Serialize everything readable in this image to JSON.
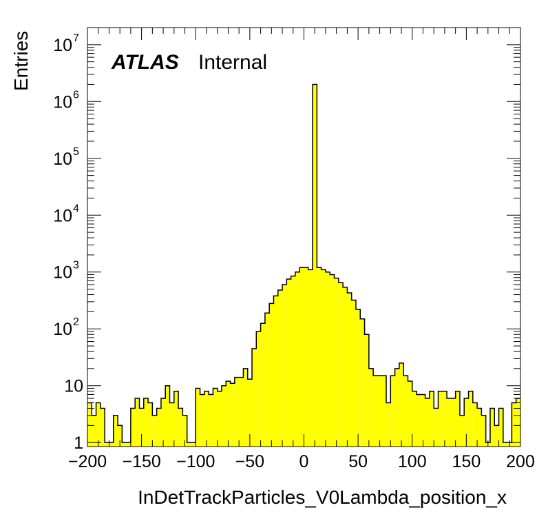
{
  "chart_data": {
    "type": "bar",
    "histogram_style": "step-filled",
    "fill_color": "#ffff00",
    "line_color": "#000000",
    "x": {
      "label": "InDetTrackParticles_V0Lambda_position_x",
      "range": [
        -200,
        200
      ],
      "major_ticks": [
        -200,
        -150,
        -100,
        -50,
        0,
        50,
        100,
        150,
        200
      ],
      "tick_labels": [
        "−200",
        "−150",
        "−100",
        "−50",
        "0",
        "50",
        "100",
        "150",
        "200"
      ],
      "bin_width": 4
    },
    "y": {
      "label": "Entries",
      "scale": "log",
      "range": [
        0.85,
        20000000
      ],
      "tick_labels": [
        {
          "value": 1,
          "base": "1",
          "exp": ""
        },
        {
          "value": 10,
          "base": "10",
          "exp": ""
        },
        {
          "value": 100,
          "base": "10",
          "exp": "2"
        },
        {
          "value": 1000,
          "base": "10",
          "exp": "3"
        },
        {
          "value": 10000,
          "base": "10",
          "exp": "4"
        },
        {
          "value": 100000,
          "base": "10",
          "exp": "5"
        },
        {
          "value": 1000000,
          "base": "10",
          "exp": "6"
        },
        {
          "value": 10000000,
          "base": "10",
          "exp": "7"
        }
      ]
    },
    "annotation": {
      "bold": "ATLAS",
      "text": "Internal"
    },
    "bin_edges_start": -200,
    "values": [
      5,
      3,
      5,
      4,
      1,
      1,
      3,
      2,
      1,
      1,
      4,
      6,
      4,
      6,
      5,
      3,
      4,
      6,
      10,
      5,
      8,
      4,
      3,
      1,
      1,
      9,
      7,
      8,
      7,
      9,
      8,
      10,
      12,
      11,
      14,
      14,
      20,
      13,
      45,
      90,
      125,
      190,
      280,
      380,
      480,
      600,
      750,
      850,
      1000,
      1200,
      1200,
      1100,
      2000000,
      1200,
      1100,
      1000,
      900,
      780,
      650,
      540,
      430,
      320,
      220,
      150,
      80,
      20,
      15,
      15,
      15,
      5,
      15,
      20,
      25,
      15,
      12,
      8,
      7,
      7,
      6,
      8,
      4,
      8,
      8,
      6,
      6,
      8,
      3,
      6,
      8,
      5,
      4,
      3,
      1,
      4,
      2,
      4,
      1,
      1,
      5,
      6
    ]
  },
  "text": {
    "ylabel": "Entries",
    "xlabel": "InDetTrackParticles_V0Lambda_position_x",
    "atlas": "ATLAS",
    "internal": "Internal"
  }
}
